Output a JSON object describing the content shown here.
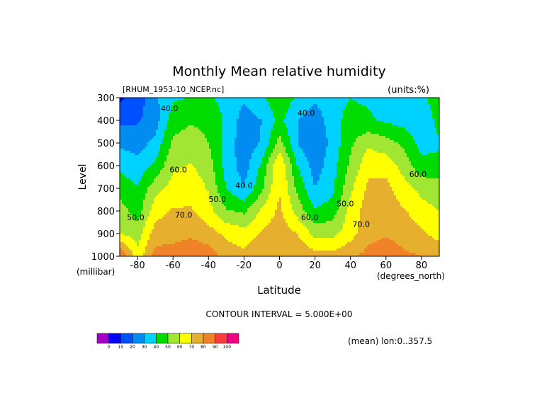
{
  "chart_data": {
    "type": "contour",
    "title": "Monthly Mean relative humidity",
    "subtitle_left": "[RHUM_1953-10_NCEP.nc]",
    "subtitle_right": "(units:%)",
    "xlabel": "Latitude",
    "x_unit_label": "(degrees_north)",
    "ylabel": "Level",
    "y_unit_label": "(millibar)",
    "xlim": [
      -90,
      90
    ],
    "ylim": [
      300,
      1000
    ],
    "y_reversed": true,
    "x_ticks": [
      -80,
      -60,
      -40,
      -20,
      0,
      20,
      40,
      60,
      80
    ],
    "x_tick_labels": [
      "-80",
      "-60",
      "-40",
      "-20",
      "0",
      "20",
      "40",
      "60",
      "80"
    ],
    "y_ticks": [
      300,
      400,
      500,
      600,
      700,
      800,
      900,
      1000
    ],
    "y_tick_labels": [
      "300",
      "400",
      "500",
      "600",
      "700",
      "800",
      "900",
      "1000"
    ],
    "footer_interval": "CONTOUR INTERVAL = 5.000E+00",
    "footer_mean": "(mean) lon:0..357.5",
    "contour_labels": [
      {
        "text": "40.0",
        "lat": -62,
        "lev": 360
      },
      {
        "text": "60.0",
        "lat": -57,
        "lev": 630
      },
      {
        "text": "50.0",
        "lat": -35,
        "lev": 760
      },
      {
        "text": "40.0",
        "lat": -20,
        "lev": 700
      },
      {
        "text": "70.0",
        "lat": -54,
        "lev": 830
      },
      {
        "text": "50.0",
        "lat": -81,
        "lev": 840
      },
      {
        "text": "60.0",
        "lat": 17,
        "lev": 840
      },
      {
        "text": "40.0",
        "lat": 15,
        "lev": 380
      },
      {
        "text": "50.0",
        "lat": 37,
        "lev": 780
      },
      {
        "text": "70.0",
        "lat": 46,
        "lev": 870
      },
      {
        "text": "60.0",
        "lat": 78,
        "lev": 650
      }
    ],
    "grid_lat": [
      -90,
      -80,
      -70,
      -60,
      -50,
      -40,
      -30,
      -20,
      -10,
      0,
      10,
      20,
      30,
      40,
      50,
      60,
      70,
      80,
      90
    ],
    "grid_lev": [
      300,
      400,
      500,
      600,
      700,
      800,
      900,
      1000
    ],
    "values": [
      [
        8,
        14,
        28,
        38,
        41,
        42,
        36,
        32,
        38,
        48,
        38,
        32,
        36,
        40,
        38,
        34,
        32,
        38,
        45
      ],
      [
        18,
        19,
        25,
        46,
        49,
        48,
        38,
        25,
        30,
        43,
        30,
        24,
        36,
        44,
        42,
        38,
        36,
        32,
        44
      ],
      [
        28,
        25,
        33,
        52,
        54,
        50,
        36,
        24,
        31,
        54,
        30,
        20,
        34,
        48,
        58,
        54,
        48,
        36,
        38
      ],
      [
        38,
        34,
        42,
        58,
        61,
        55,
        36,
        25,
        42,
        70,
        40,
        25,
        36,
        52,
        67,
        66,
        56,
        43,
        44
      ],
      [
        45,
        41,
        56,
        64,
        66,
        59,
        40,
        30,
        48,
        70,
        48,
        30,
        38,
        58,
        72,
        73,
        64,
        57,
        54
      ],
      [
        55,
        45,
        66,
        71,
        71,
        64,
        51,
        48,
        62,
        72,
        56,
        41,
        45,
        64,
        75,
        76,
        71,
        64,
        60
      ],
      [
        60,
        55,
        75,
        76,
        78,
        74,
        68,
        64,
        71,
        76,
        70,
        57,
        57,
        66,
        77,
        79,
        76,
        72,
        66
      ],
      [
        92,
        64,
        84,
        85,
        88,
        86,
        75,
        73,
        78,
        80,
        78,
        74,
        74,
        78,
        83,
        86,
        82,
        80,
        77
      ]
    ],
    "colorbar": {
      "levels": [
        0,
        10,
        20,
        30,
        40,
        50,
        60,
        70,
        80,
        90,
        100
      ],
      "labels": [
        "0",
        "10",
        "20",
        "30",
        "40",
        "50",
        "60",
        "70",
        "80",
        "90",
        "100"
      ],
      "colors": [
        "#a000c8",
        "#0000ff",
        "#0050ff",
        "#008cf0",
        "#00d2ff",
        "#00dc00",
        "#a0e632",
        "#ffff00",
        "#e6af2d",
        "#f08228",
        "#fa3c3c",
        "#f00082"
      ]
    }
  }
}
